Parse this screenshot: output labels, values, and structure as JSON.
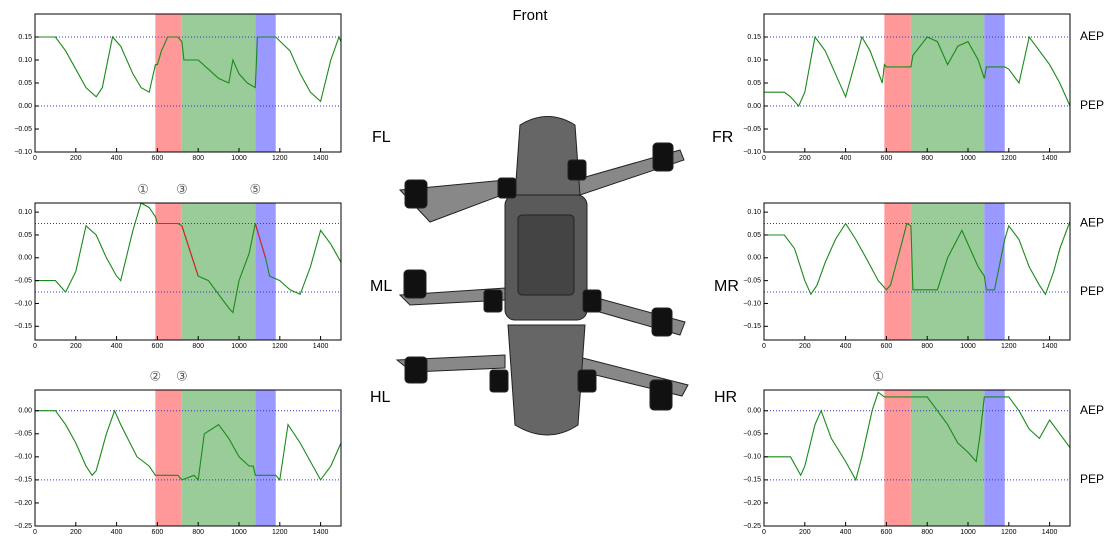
{
  "figure_title": "Front",
  "chart_data": [
    {
      "type": "line",
      "title": "FL",
      "xlim": [
        0,
        1500
      ],
      "xticks": [
        0,
        200,
        400,
        600,
        800,
        1000,
        1200,
        1400
      ],
      "ylim": [
        -0.1,
        0.2
      ],
      "yticks": [
        {
          "value": -0.1,
          "label": "−0.10"
        },
        {
          "value": -0.05,
          "label": "−0.05"
        },
        {
          "value": 0,
          "label": "0.00"
        },
        0.05,
        {
          "value": 0.1,
          "label": "0.10"
        },
        0.15
      ],
      "spans": [
        {
          "start": 590,
          "end": 720,
          "color": "#ff9999"
        },
        {
          "start": 720,
          "end": 1080,
          "color": "#99cc99"
        },
        {
          "start": 1080,
          "end": 1180,
          "color": "#9999ff"
        }
      ],
      "hlines": [
        {
          "value": 0.15
        },
        {
          "value": 0
        }
      ],
      "x": [
        0,
        100,
        150,
        200,
        250,
        300,
        330,
        380,
        420,
        480,
        520,
        560,
        590,
        600,
        620,
        650,
        700,
        720,
        730,
        800,
        850,
        900,
        950,
        970,
        1000,
        1040,
        1080,
        1090,
        1180,
        1250,
        1300,
        1350,
        1400,
        1450,
        1490,
        1500
      ],
      "series": [
        {
          "color": "#1a8a1a",
          "values": [
            0.15,
            0.15,
            0.12,
            0.08,
            0.04,
            0.02,
            0.04,
            0.15,
            0.13,
            0.07,
            0.04,
            0.03,
            0.09,
            0.09,
            0.12,
            0.15,
            0.15,
            0.14,
            0.1,
            0.1,
            0.08,
            0.06,
            0.05,
            0.1,
            0.07,
            0.05,
            0.04,
            0.15,
            0.15,
            0.12,
            0.07,
            0.03,
            0.01,
            0.1,
            0.15,
            0.14
          ]
        }
      ]
    },
    {
      "type": "line",
      "title": "ML",
      "xlim": [
        0,
        1500
      ],
      "xticks": [
        0,
        200,
        400,
        600,
        800,
        1000,
        1200,
        1400
      ],
      "ylim": [
        -0.18,
        0.12
      ],
      "yticks": [
        {
          "value": -0.15,
          "label": "−0.15"
        },
        {
          "value": -0.1,
          "label": "−0.10"
        },
        {
          "value": -0.05,
          "label": "−0.05"
        },
        {
          "value": 0,
          "label": "0.00"
        },
        0.05,
        {
          "value": 0.1,
          "label": "0.10"
        }
      ],
      "spans": [
        {
          "start": 590,
          "end": 720,
          "color": "#ff9999"
        },
        {
          "start": 720,
          "end": 1080,
          "color": "#99cc99"
        },
        {
          "start": 1080,
          "end": 1180,
          "color": "#9999ff"
        }
      ],
      "hlines": [
        {
          "value": 0.075
        },
        {
          "value": -0.075
        }
      ],
      "annotations": [
        {
          "text": "①",
          "x": 530
        },
        {
          "text": "③",
          "x": 720
        },
        {
          "text": "⑤",
          "x": 1080
        }
      ],
      "x": [
        0,
        100,
        150,
        200,
        250,
        300,
        350,
        400,
        420,
        480,
        520,
        560,
        590,
        600,
        700,
        720,
        800,
        850,
        900,
        950,
        970,
        1000,
        1050,
        1080,
        1130,
        1150,
        1200,
        1250,
        1300,
        1350,
        1400,
        1450,
        1500
      ],
      "series": [
        {
          "color": "#1a8a1a",
          "values": [
            -0.05,
            -0.05,
            -0.075,
            -0.03,
            0.07,
            0.05,
            0,
            -0.04,
            -0.05,
            0.06,
            0.12,
            0.11,
            0.09,
            0.075,
            0.075,
            0.07,
            -0.04,
            -0.05,
            -0.08,
            -0.11,
            -0.12,
            -0.05,
            0.01,
            0.075,
            0,
            -0.04,
            -0.05,
            -0.07,
            -0.08,
            -0.02,
            0.06,
            0.03,
            -0.01
          ]
        },
        {
          "color": "#dd2222",
          "values": [
            null,
            null,
            null,
            null,
            null,
            null,
            null,
            null,
            null,
            null,
            null,
            null,
            null,
            null,
            null,
            0.07,
            -0.04,
            null,
            null,
            null,
            null,
            null,
            null,
            0.075,
            0,
            null,
            null,
            null,
            null,
            null,
            null,
            null,
            null
          ]
        }
      ]
    },
    {
      "type": "line",
      "title": "HL",
      "xlim": [
        0,
        1500
      ],
      "xticks": [
        0,
        200,
        400,
        600,
        800,
        1000,
        1200,
        1400
      ],
      "ylim": [
        -0.25,
        0.045
      ],
      "yticks": [
        {
          "value": -0.25,
          "label": "−0.25"
        },
        {
          "value": -0.2,
          "label": "−0.20"
        },
        {
          "value": -0.15,
          "label": "−0.15"
        },
        {
          "value": -0.1,
          "label": "−0.10"
        },
        {
          "value": -0.05,
          "label": "−0.05"
        },
        {
          "value": 0,
          "label": "0.00"
        }
      ],
      "spans": [
        {
          "start": 590,
          "end": 720,
          "color": "#ff9999"
        },
        {
          "start": 720,
          "end": 1080,
          "color": "#99cc99"
        },
        {
          "start": 1080,
          "end": 1180,
          "color": "#9999ff"
        }
      ],
      "hlines": [
        {
          "value": 0
        },
        {
          "value": -0.15
        }
      ],
      "annotations": [
        {
          "text": "②",
          "x": 590
        },
        {
          "text": "③",
          "x": 720
        }
      ],
      "x": [
        0,
        100,
        150,
        200,
        250,
        280,
        300,
        350,
        390,
        420,
        500,
        560,
        590,
        700,
        720,
        780,
        800,
        830,
        900,
        950,
        1000,
        1050,
        1070,
        1080,
        1180,
        1200,
        1240,
        1300,
        1350,
        1400,
        1450,
        1500
      ],
      "series": [
        {
          "color": "#1a8a1a",
          "values": [
            0,
            0,
            -0.03,
            -0.07,
            -0.12,
            -0.14,
            -0.13,
            -0.05,
            0,
            -0.03,
            -0.1,
            -0.12,
            -0.14,
            -0.14,
            -0.15,
            -0.14,
            -0.15,
            -0.05,
            -0.03,
            -0.06,
            -0.1,
            -0.12,
            -0.12,
            -0.14,
            -0.14,
            -0.15,
            -0.03,
            -0.07,
            -0.11,
            -0.15,
            -0.12,
            -0.07
          ]
        }
      ]
    },
    {
      "type": "line",
      "title": "FR",
      "xlim": [
        0,
        1500
      ],
      "xticks": [
        0,
        200,
        400,
        600,
        800,
        1000,
        1200,
        1400
      ],
      "ylim": [
        -0.1,
        0.2
      ],
      "yticks": [
        {
          "value": -0.1,
          "label": "−0.10"
        },
        {
          "value": -0.05,
          "label": "−0.05"
        },
        {
          "value": 0,
          "label": "0.00"
        },
        0.05,
        {
          "value": 0.1,
          "label": "0.10"
        },
        0.15
      ],
      "spans": [
        {
          "start": 590,
          "end": 720,
          "color": "#ff9999"
        },
        {
          "start": 720,
          "end": 1080,
          "color": "#99cc99"
        },
        {
          "start": 1080,
          "end": 1180,
          "color": "#9999ff"
        }
      ],
      "hlines": [
        {
          "value": 0.15,
          "label": "AEP"
        },
        {
          "value": 0,
          "label": "PEP"
        }
      ],
      "x": [
        0,
        100,
        130,
        170,
        200,
        250,
        300,
        350,
        400,
        450,
        480,
        520,
        580,
        590,
        600,
        720,
        730,
        800,
        850,
        900,
        950,
        1000,
        1050,
        1080,
        1090,
        1180,
        1200,
        1250,
        1300,
        1350,
        1400,
        1450,
        1500
      ],
      "series": [
        {
          "color": "#1a8a1a",
          "values": [
            0.03,
            0.03,
            0.02,
            0,
            0.03,
            0.15,
            0.12,
            0.07,
            0.02,
            0.1,
            0.15,
            0.12,
            0.05,
            0.09,
            0.085,
            0.085,
            0.11,
            0.15,
            0.14,
            0.09,
            0.13,
            0.14,
            0.1,
            0.06,
            0.085,
            0.085,
            0.08,
            0.05,
            0.15,
            0.12,
            0.09,
            0.05,
            0
          ]
        }
      ]
    },
    {
      "type": "line",
      "title": "MR",
      "xlim": [
        0,
        1500
      ],
      "xticks": [
        0,
        200,
        400,
        600,
        800,
        1000,
        1200,
        1400
      ],
      "ylim": [
        -0.18,
        0.12
      ],
      "yticks": [
        {
          "value": -0.15,
          "label": "−0.15"
        },
        {
          "value": -0.1,
          "label": "−0.10"
        },
        {
          "value": -0.05,
          "label": "−0.05"
        },
        {
          "value": 0,
          "label": "0.00"
        },
        0.05,
        {
          "value": 0.1,
          "label": "0.10"
        }
      ],
      "spans": [
        {
          "start": 590,
          "end": 720,
          "color": "#ff9999"
        },
        {
          "start": 720,
          "end": 1080,
          "color": "#99cc99"
        },
        {
          "start": 1080,
          "end": 1180,
          "color": "#9999ff"
        }
      ],
      "hlines": [
        {
          "value": 0.075,
          "label": "AEP"
        },
        {
          "value": -0.075,
          "label": "PEP"
        }
      ],
      "x": [
        0,
        100,
        150,
        200,
        230,
        260,
        300,
        350,
        400,
        450,
        500,
        560,
        600,
        620,
        680,
        700,
        720,
        730,
        800,
        850,
        900,
        970,
        1000,
        1050,
        1080,
        1090,
        1130,
        1180,
        1200,
        1250,
        1300,
        1350,
        1380,
        1420,
        1450,
        1500
      ],
      "series": [
        {
          "color": "#1a8a1a",
          "values": [
            0.05,
            0.05,
            0.02,
            -0.05,
            -0.08,
            -0.06,
            -0.01,
            0.04,
            0.075,
            0.04,
            0,
            -0.05,
            -0.07,
            -0.06,
            0.04,
            0.075,
            0.07,
            -0.07,
            -0.07,
            -0.07,
            0,
            0.06,
            0.03,
            -0.02,
            -0.04,
            -0.07,
            -0.07,
            0.04,
            0.07,
            0.04,
            -0.02,
            -0.06,
            -0.08,
            -0.03,
            0.02,
            0.08
          ]
        }
      ]
    },
    {
      "type": "line",
      "title": "HR",
      "xlim": [
        0,
        1500
      ],
      "xticks": [
        0,
        200,
        400,
        600,
        800,
        1000,
        1200,
        1400
      ],
      "ylim": [
        -0.25,
        0.045
      ],
      "yticks": [
        {
          "value": -0.25,
          "label": "−0.25"
        },
        {
          "value": -0.2,
          "label": "−0.20"
        },
        {
          "value": -0.15,
          "label": "−0.15"
        },
        {
          "value": -0.1,
          "label": "−0.10"
        },
        {
          "value": -0.05,
          "label": "−0.05"
        },
        {
          "value": 0,
          "label": "0.00"
        }
      ],
      "spans": [
        {
          "start": 590,
          "end": 720,
          "color": "#ff9999"
        },
        {
          "start": 720,
          "end": 1080,
          "color": "#99cc99"
        },
        {
          "start": 1080,
          "end": 1180,
          "color": "#9999ff"
        }
      ],
      "hlines": [
        {
          "value": 0,
          "label": "AEP"
        },
        {
          "value": -0.15,
          "label": "PEP"
        }
      ],
      "annotations": [
        {
          "text": "①",
          "x": 560
        }
      ],
      "x": [
        0,
        130,
        180,
        200,
        250,
        280,
        330,
        400,
        450,
        480,
        530,
        560,
        590,
        720,
        800,
        850,
        900,
        950,
        1000,
        1040,
        1060,
        1080,
        1180,
        1200,
        1250,
        1300,
        1350,
        1400,
        1450,
        1500
      ],
      "series": [
        {
          "color": "#1a8a1a",
          "values": [
            -0.1,
            -0.1,
            -0.14,
            -0.12,
            -0.03,
            0,
            -0.06,
            -0.11,
            -0.15,
            -0.1,
            0,
            0.04,
            0.03,
            0.03,
            0.03,
            0,
            -0.03,
            -0.07,
            -0.09,
            -0.11,
            -0.05,
            0.03,
            0.03,
            0.03,
            0,
            -0.04,
            -0.06,
            -0.02,
            -0.05,
            -0.08
          ]
        }
      ]
    }
  ]
}
